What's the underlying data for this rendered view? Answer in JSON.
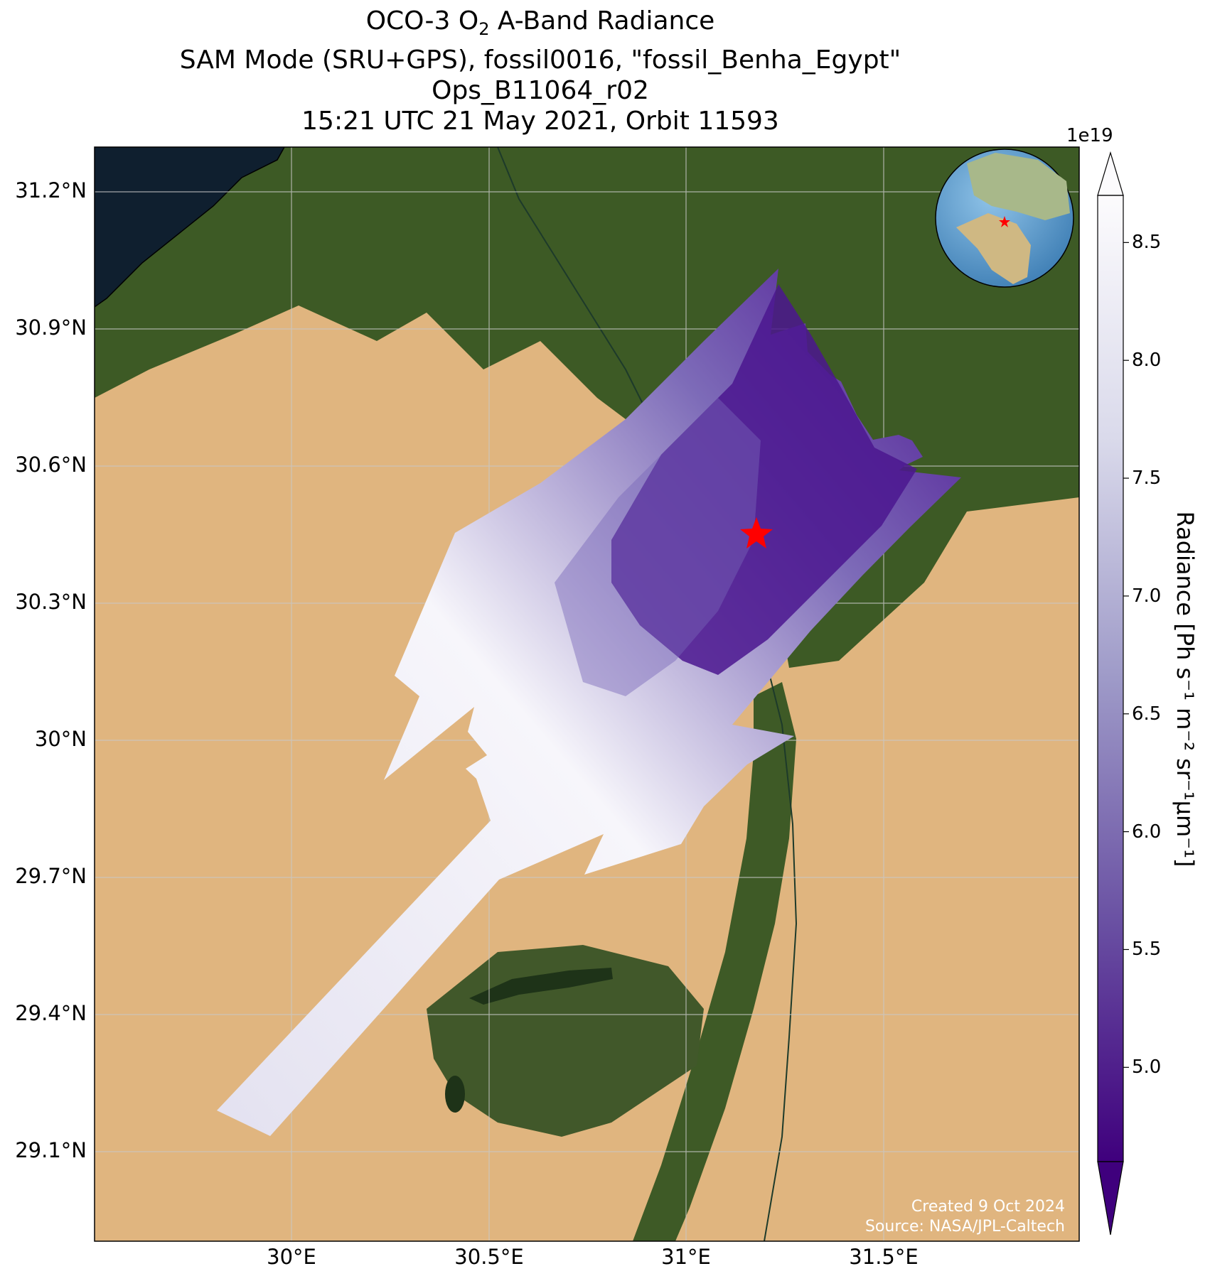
{
  "title": {
    "line1_prefix": "OCO-3 O",
    "line1_sub": "2",
    "line1_suffix": " A-Band Radiance",
    "line2": "SAM Mode (SRU+GPS), fossil0016, \"fossil_Benha_Egypt\"",
    "line3": "Ops_B11064_r02",
    "line4": "15:21 UTC 21 May 2021, Orbit 11593"
  },
  "axes": {
    "lat_ticks": [
      "31.2°N",
      "30.9°N",
      "30.6°N",
      "30.3°N",
      "30°N",
      "29.7°N",
      "29.4°N",
      "29.1°N"
    ],
    "lon_ticks": [
      "30°E",
      "30.5°E",
      "31°E",
      "31.5°E"
    ],
    "lat_range": [
      28.87,
      31.3
    ],
    "lon_range": [
      29.5,
      32.0
    ]
  },
  "colorbar": {
    "exponent": "1e19",
    "label": "Radiance [Ph s⁻¹ m⁻² sr⁻¹μm⁻¹]",
    "ticks": [
      "5.0",
      "5.5",
      "6.0",
      "6.5",
      "7.0",
      "7.5",
      "8.0",
      "8.5"
    ],
    "range": [
      4.6,
      8.7
    ],
    "colors": {
      "low": "#3f007d",
      "high": "#fcfbfd"
    }
  },
  "target": {
    "lon": 31.18,
    "lat": 30.46,
    "marker": "red-star",
    "color": "#ff0000"
  },
  "inset_globe": {
    "marker": "red-star"
  },
  "credits": {
    "created": "Created 9 Oct 2024",
    "source": "Source: NASA/JPL-Caltech"
  }
}
